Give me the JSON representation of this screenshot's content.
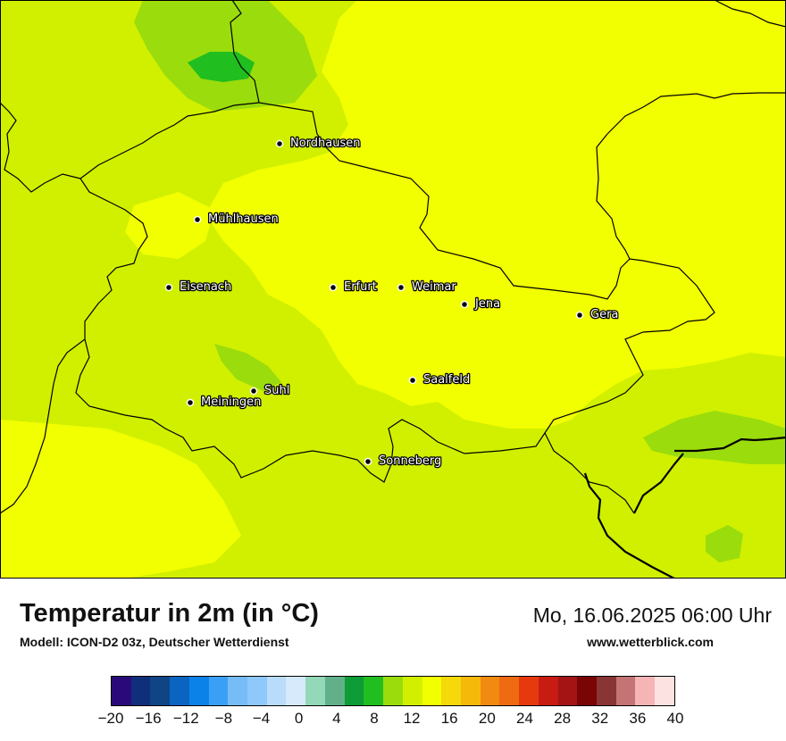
{
  "title": "Temperatur in 2m (in °C)",
  "subtitle": "Modell: ICON-D2 03z, Deutscher Wetterdienst",
  "datetime": "Mo, 16.06.2025 06:00 Uhr",
  "source": "www.wetterblick.com",
  "cities": [
    {
      "name": "Nordhausen"
    },
    {
      "name": "Mühlhausen"
    },
    {
      "name": "Eisenach"
    },
    {
      "name": "Erfurt"
    },
    {
      "name": "Weimar"
    },
    {
      "name": "Jena"
    },
    {
      "name": "Gera"
    },
    {
      "name": "Suhl"
    },
    {
      "name": "Meiningen"
    },
    {
      "name": "Saalfeld"
    },
    {
      "name": "Sonneberg"
    }
  ],
  "legend": {
    "colors": [
      "#2a0a7a",
      "#0f2f7a",
      "#0f4585",
      "#0a64c0",
      "#0a82e8",
      "#3aa0f5",
      "#76bdf8",
      "#8fc8fa",
      "#b9dcfb",
      "#d7eafc",
      "#93d8b8",
      "#62b08a",
      "#0d9c35",
      "#20be1e",
      "#9bdc0c",
      "#d0f000",
      "#f2ff00",
      "#f5d90a",
      "#f5b90a",
      "#f18a11",
      "#ee6b14",
      "#e63a0e",
      "#c81c12",
      "#a41414",
      "#7a0505",
      "#8a3535",
      "#c47474",
      "#f5b5b5",
      "#fde2e2"
    ],
    "ticks": [
      "−20",
      "−16",
      "−12",
      "−8",
      "−4",
      "0",
      "4",
      "8",
      "12",
      "16",
      "20",
      "24",
      "28",
      "32",
      "36",
      "40"
    ]
  },
  "field_colors": {
    "warm_yellow": "#f2ff00",
    "light_green": "#d0f000",
    "mid_green": "#9bdc0c",
    "dark_green": "#20be1e"
  }
}
